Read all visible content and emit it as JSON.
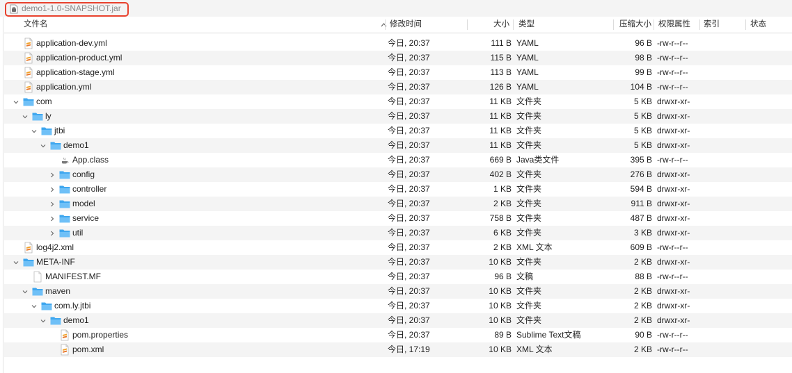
{
  "window": {
    "title": "demo1-1.0-SNAPSHOT.jar",
    "title_icon": "jar-archive-icon",
    "highlight_color": "#e8412d"
  },
  "columns": {
    "name": "文件名",
    "date": "修改时间",
    "size": "大小",
    "kind": "类型",
    "compressed": "压缩大小",
    "permissions": "权限属性",
    "index": "索引",
    "status": "状态",
    "sort_icon": "chevron-up-icon"
  },
  "colors": {
    "folder": "#3fa7ef",
    "alt_row": "#f4f4f4",
    "yaml_icon": "#f0a22b"
  },
  "rows": [
    {
      "name": "application-dev.yml",
      "level": 0,
      "icon": "file-yaml-icon",
      "expand": "none",
      "date": "今日, 20:37",
      "size": "111 B",
      "kind": "YAML",
      "csize": "96 B",
      "perm": "-rw-r--r--"
    },
    {
      "name": "application-product.yml",
      "level": 0,
      "icon": "file-yaml-icon",
      "expand": "none",
      "date": "今日, 20:37",
      "size": "115 B",
      "kind": "YAML",
      "csize": "98 B",
      "perm": "-rw-r--r--"
    },
    {
      "name": "application-stage.yml",
      "level": 0,
      "icon": "file-yaml-icon",
      "expand": "none",
      "date": "今日, 20:37",
      "size": "113 B",
      "kind": "YAML",
      "csize": "99 B",
      "perm": "-rw-r--r--"
    },
    {
      "name": "application.yml",
      "level": 0,
      "icon": "file-yaml-icon",
      "expand": "none",
      "date": "今日, 20:37",
      "size": "126 B",
      "kind": "YAML",
      "csize": "104 B",
      "perm": "-rw-r--r--"
    },
    {
      "name": "com",
      "level": 0,
      "icon": "folder-icon",
      "expand": "open",
      "date": "今日, 20:37",
      "size": "11 KB",
      "kind": "文件夹",
      "csize": "5 KB",
      "perm": "drwxr-xr-"
    },
    {
      "name": "ly",
      "level": 1,
      "icon": "folder-icon",
      "expand": "open",
      "date": "今日, 20:37",
      "size": "11 KB",
      "kind": "文件夹",
      "csize": "5 KB",
      "perm": "drwxr-xr-"
    },
    {
      "name": "jtbi",
      "level": 2,
      "icon": "folder-icon",
      "expand": "open",
      "date": "今日, 20:37",
      "size": "11 KB",
      "kind": "文件夹",
      "csize": "5 KB",
      "perm": "drwxr-xr-"
    },
    {
      "name": "demo1",
      "level": 3,
      "icon": "folder-icon",
      "expand": "open",
      "date": "今日, 20:37",
      "size": "11 KB",
      "kind": "文件夹",
      "csize": "5 KB",
      "perm": "drwxr-xr-"
    },
    {
      "name": "App.class",
      "level": 4,
      "icon": "java-class-icon",
      "expand": "none",
      "date": "今日, 20:37",
      "size": "669 B",
      "kind": "Java类文件",
      "csize": "395 B",
      "perm": "-rw-r--r--"
    },
    {
      "name": "config",
      "level": 4,
      "icon": "folder-icon",
      "expand": "closed",
      "date": "今日, 20:37",
      "size": "402 B",
      "kind": "文件夹",
      "csize": "276 B",
      "perm": "drwxr-xr-"
    },
    {
      "name": "controller",
      "level": 4,
      "icon": "folder-icon",
      "expand": "closed",
      "date": "今日, 20:37",
      "size": "1 KB",
      "kind": "文件夹",
      "csize": "594 B",
      "perm": "drwxr-xr-"
    },
    {
      "name": "model",
      "level": 4,
      "icon": "folder-icon",
      "expand": "closed",
      "date": "今日, 20:37",
      "size": "2 KB",
      "kind": "文件夹",
      "csize": "911 B",
      "perm": "drwxr-xr-"
    },
    {
      "name": "service",
      "level": 4,
      "icon": "folder-icon",
      "expand": "closed",
      "date": "今日, 20:37",
      "size": "758 B",
      "kind": "文件夹",
      "csize": "487 B",
      "perm": "drwxr-xr-"
    },
    {
      "name": "util",
      "level": 4,
      "icon": "folder-icon",
      "expand": "closed",
      "date": "今日, 20:37",
      "size": "6 KB",
      "kind": "文件夹",
      "csize": "3 KB",
      "perm": "drwxr-xr-"
    },
    {
      "name": "log4j2.xml",
      "level": 0,
      "icon": "file-xml-icon",
      "expand": "none",
      "date": "今日, 20:37",
      "size": "2 KB",
      "kind": "XML 文本",
      "csize": "609 B",
      "perm": "-rw-r--r--"
    },
    {
      "name": "META-INF",
      "level": 0,
      "icon": "folder-icon",
      "expand": "open",
      "date": "今日, 20:37",
      "size": "10 KB",
      "kind": "文件夹",
      "csize": "2 KB",
      "perm": "drwxr-xr-"
    },
    {
      "name": "MANIFEST.MF",
      "level": 1,
      "icon": "file-blank-icon",
      "expand": "none",
      "date": "今日, 20:37",
      "size": "96 B",
      "kind": "文稿",
      "csize": "88 B",
      "perm": "-rw-r--r--"
    },
    {
      "name": "maven",
      "level": 1,
      "icon": "folder-icon",
      "expand": "open",
      "date": "今日, 20:37",
      "size": "10 KB",
      "kind": "文件夹",
      "csize": "2 KB",
      "perm": "drwxr-xr-"
    },
    {
      "name": "com.ly.jtbi",
      "level": 2,
      "icon": "folder-icon",
      "expand": "open",
      "date": "今日, 20:37",
      "size": "10 KB",
      "kind": "文件夹",
      "csize": "2 KB",
      "perm": "drwxr-xr-"
    },
    {
      "name": "demo1",
      "level": 3,
      "icon": "folder-icon",
      "expand": "open",
      "date": "今日, 20:37",
      "size": "10 KB",
      "kind": "文件夹",
      "csize": "2 KB",
      "perm": "drwxr-xr-"
    },
    {
      "name": "pom.properties",
      "level": 4,
      "icon": "file-sublime-icon",
      "expand": "none",
      "date": "今日, 20:37",
      "size": "89 B",
      "kind": "Sublime Text文稿",
      "csize": "90 B",
      "perm": "-rw-r--r--"
    },
    {
      "name": "pom.xml",
      "level": 4,
      "icon": "file-xml-icon",
      "expand": "none",
      "date": "今日, 17:19",
      "size": "10 KB",
      "kind": "XML 文本",
      "csize": "2 KB",
      "perm": "-rw-r--r--"
    }
  ]
}
